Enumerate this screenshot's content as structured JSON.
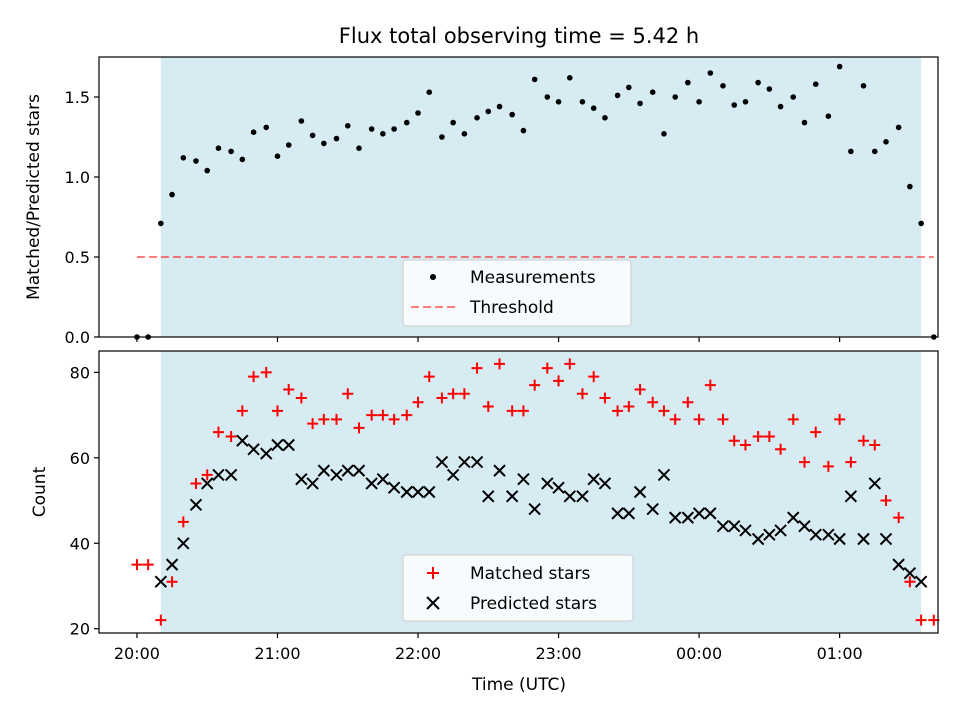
{
  "title": "Flux total observing time = 5.42 h",
  "colors": {
    "observing_band": "#add8e6",
    "matched": "#ff0000",
    "predicted": "#000000",
    "threshold": "#ff0000",
    "measurement": "#000000"
  },
  "chart_data": [
    {
      "type": "scatter",
      "ylabel": "Matched/Predicted stars",
      "ylim": [
        0,
        1.75
      ],
      "yticks": [
        "0.0",
        "0.5",
        "1.0",
        "1.5"
      ],
      "xlim_hours": [
        -0.27,
        5.7
      ],
      "observing_band_hours": [
        0.17,
        5.58
      ],
      "threshold": {
        "name": "Threshold",
        "value": 0.5,
        "x_range_hours": [
          0.0,
          5.67
        ]
      },
      "legend": {
        "position": "lower-center",
        "entries": [
          "Measurements",
          "Threshold"
        ]
      },
      "series": [
        {
          "name": "Measurements",
          "x_hours": [
            0.0,
            0.08,
            0.17,
            0.25,
            0.33,
            0.42,
            0.5,
            0.58,
            0.67,
            0.75,
            0.83,
            0.92,
            1.0,
            1.08,
            1.17,
            1.25,
            1.33,
            1.42,
            1.5,
            1.58,
            1.67,
            1.75,
            1.83,
            1.92,
            2.0,
            2.08,
            2.17,
            2.25,
            2.33,
            2.42,
            2.5,
            2.58,
            2.67,
            2.75,
            2.83,
            2.92,
            3.0,
            3.08,
            3.17,
            3.25,
            3.33,
            3.42,
            3.5,
            3.58,
            3.67,
            3.75,
            3.83,
            3.92,
            4.0,
            4.08,
            4.17,
            4.25,
            4.33,
            4.42,
            4.5,
            4.58,
            4.67,
            4.75,
            4.83,
            4.92,
            5.0,
            5.08,
            5.17,
            5.25,
            5.33,
            5.42,
            5.5,
            5.58,
            5.67
          ],
          "values": [
            0.0,
            0.0,
            0.71,
            0.89,
            1.12,
            1.1,
            1.04,
            1.18,
            1.16,
            1.11,
            1.28,
            1.31,
            1.13,
            1.2,
            1.35,
            1.26,
            1.21,
            1.24,
            1.32,
            1.18,
            1.3,
            1.27,
            1.3,
            1.34,
            1.4,
            1.53,
            1.25,
            1.34,
            1.27,
            1.37,
            1.41,
            1.44,
            1.39,
            1.29,
            1.61,
            1.5,
            1.47,
            1.62,
            1.47,
            1.43,
            1.37,
            1.51,
            1.56,
            1.46,
            1.53,
            1.27,
            1.5,
            1.59,
            1.47,
            1.65,
            1.57,
            1.45,
            1.47,
            1.59,
            1.55,
            1.44,
            1.5,
            1.34,
            1.58,
            1.38,
            1.69,
            1.16,
            1.57,
            1.16,
            1.22,
            1.31,
            0.94,
            0.71,
            0.0
          ]
        }
      ]
    },
    {
      "type": "scatter",
      "ylabel": "Count",
      "xlabel": "Time (UTC)",
      "ylim": [
        19,
        85
      ],
      "yticks": [
        "20",
        "40",
        "60",
        "80"
      ],
      "xlim_hours": [
        -0.27,
        5.7
      ],
      "observing_band_hours": [
        0.17,
        5.58
      ],
      "x_tick_hours": [
        0,
        1,
        2,
        3,
        4,
        5
      ],
      "categories": [
        "20:00",
        "21:00",
        "22:00",
        "23:00",
        "00:00",
        "01:00"
      ],
      "legend": {
        "position": "lower-center",
        "entries": [
          "Matched stars",
          "Predicted stars"
        ]
      },
      "series": [
        {
          "name": "Matched stars",
          "marker": "plus",
          "x_hours": [
            0.0,
            0.08,
            0.17,
            0.25,
            0.33,
            0.42,
            0.5,
            0.58,
            0.67,
            0.75,
            0.83,
            0.92,
            1.0,
            1.08,
            1.17,
            1.25,
            1.33,
            1.42,
            1.5,
            1.58,
            1.67,
            1.75,
            1.83,
            1.92,
            2.0,
            2.08,
            2.17,
            2.25,
            2.33,
            2.42,
            2.5,
            2.58,
            2.67,
            2.75,
            2.83,
            2.92,
            3.0,
            3.08,
            3.17,
            3.25,
            3.33,
            3.42,
            3.5,
            3.58,
            3.67,
            3.75,
            3.83,
            3.92,
            4.0,
            4.08,
            4.17,
            4.25,
            4.33,
            4.42,
            4.5,
            4.58,
            4.67,
            4.75,
            4.83,
            4.92,
            5.0,
            5.08,
            5.17,
            5.25,
            5.33,
            5.42,
            5.5,
            5.58,
            5.67
          ],
          "values": [
            35,
            35,
            22,
            31,
            45,
            54,
            56,
            66,
            65,
            71,
            79,
            80,
            71,
            76,
            74,
            68,
            69,
            69,
            75,
            67,
            70,
            70,
            69,
            70,
            73,
            79,
            74,
            75,
            75,
            81,
            72,
            82,
            71,
            71,
            77,
            81,
            78,
            82,
            75,
            79,
            74,
            71,
            72,
            76,
            73,
            71,
            69,
            73,
            69,
            77,
            69,
            64,
            63,
            65,
            65,
            62,
            69,
            59,
            66,
            58,
            69,
            59,
            64,
            63,
            50,
            46,
            31,
            22,
            22
          ]
        },
        {
          "name": "Predicted stars",
          "marker": "x",
          "x_hours": [
            0.17,
            0.25,
            0.33,
            0.42,
            0.5,
            0.58,
            0.67,
            0.75,
            0.83,
            0.92,
            1.0,
            1.08,
            1.17,
            1.25,
            1.33,
            1.42,
            1.5,
            1.58,
            1.67,
            1.75,
            1.83,
            1.92,
            2.0,
            2.08,
            2.17,
            2.25,
            2.33,
            2.42,
            2.5,
            2.58,
            2.67,
            2.75,
            2.83,
            2.92,
            3.0,
            3.08,
            3.17,
            3.25,
            3.33,
            3.42,
            3.5,
            3.58,
            3.67,
            3.75,
            3.83,
            3.92,
            4.0,
            4.08,
            4.17,
            4.25,
            4.33,
            4.42,
            4.5,
            4.58,
            4.67,
            4.75,
            4.83,
            4.92,
            5.0,
            5.08,
            5.17,
            5.25,
            5.33,
            5.42,
            5.5,
            5.58
          ],
          "values": [
            31,
            35,
            40,
            49,
            54,
            56,
            56,
            64,
            62,
            61,
            63,
            63,
            55,
            54,
            57,
            56,
            57,
            57,
            54,
            55,
            53,
            52,
            52,
            52,
            59,
            56,
            59,
            59,
            51,
            57,
            51,
            55,
            48,
            54,
            53,
            51,
            51,
            55,
            54,
            47,
            47,
            52,
            48,
            56,
            46,
            46,
            47,
            47,
            44,
            44,
            43,
            41,
            42,
            43,
            46,
            44,
            42,
            42,
            41,
            51,
            41,
            54,
            41,
            35,
            33,
            31
          ]
        }
      ]
    }
  ]
}
